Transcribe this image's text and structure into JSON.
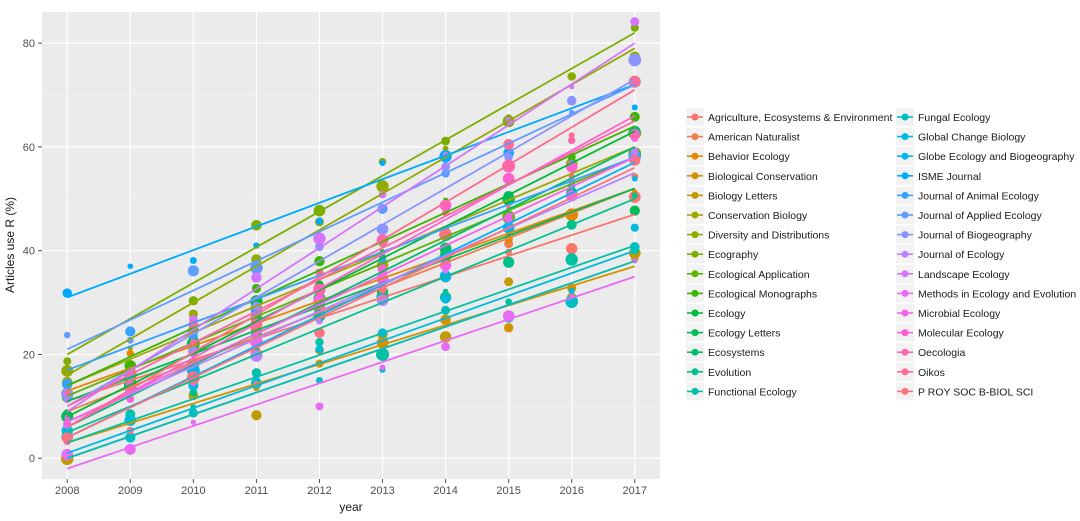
{
  "chart_data": {
    "type": "scatter",
    "title": "",
    "xlabel": "year",
    "ylabel": "Articles use R (%)",
    "x_ticks": [
      "2008",
      "2009",
      "2010",
      "2011",
      "2012",
      "2013",
      "2014",
      "2015",
      "2016",
      "2017"
    ],
    "y_ticks": [
      "0",
      "20",
      "40",
      "60",
      "80"
    ],
    "xlim": [
      2007.6,
      2017.4
    ],
    "ylim": [
      -4,
      86
    ],
    "grid": true,
    "background": "#ebebeb",
    "legend_position": "right",
    "series": [
      {
        "name": "Agriculture, Ecosystems & Environment",
        "color": "#F8766D",
        "line": [
          11,
          47
        ]
      },
      {
        "name": "American Naturalist",
        "color": "#F17D4B",
        "line": [
          9,
          52
        ]
      },
      {
        "name": "Behavior Ecology",
        "color": "#E58700",
        "line": [
          13,
          52
        ]
      },
      {
        "name": "Biological Conservation",
        "color": "#D49200",
        "line": [
          3,
          37
        ]
      },
      {
        "name": "Biology Letters",
        "color": "#C09B00",
        "line": [
          0,
          38
        ]
      },
      {
        "name": "Conservation Biology",
        "color": "#A3A500",
        "line": [
          14,
          60
        ]
      },
      {
        "name": "Diversity and Distributions",
        "color": "#93AA00",
        "line": [
          16,
          79
        ]
      },
      {
        "name": "Ecography",
        "color": "#7CAE00",
        "line": [
          20,
          82
        ]
      },
      {
        "name": "Ecological Application",
        "color": "#5EB300",
        "line": [
          12,
          58
        ]
      },
      {
        "name": "Ecological Monographs",
        "color": "#39B600",
        "line": [
          14,
          64
        ]
      },
      {
        "name": "Ecology",
        "color": "#00BA38",
        "line": [
          8,
          63
        ]
      },
      {
        "name": "Ecology Letters",
        "color": "#00BC56",
        "line": [
          11,
          52
        ]
      },
      {
        "name": "Ecosystems",
        "color": "#00BE6C",
        "line": [
          6,
          60
        ]
      },
      {
        "name": "Evolution",
        "color": "#00C08B",
        "line": [
          5,
          50
        ]
      },
      {
        "name": "Functional Ecology",
        "color": "#00C1A3",
        "line": [
          3,
          41
        ]
      },
      {
        "name": "Fungal Ecology",
        "color": "#00BFC4",
        "line": [
          0,
          38
        ]
      },
      {
        "name": "Global Change Biology",
        "color": "#00BAE0",
        "line": [
          1,
          40
        ]
      },
      {
        "name": "Globe Ecology and Biogeography",
        "color": "#00B4EF",
        "line": [
          4,
          57
        ]
      },
      {
        "name": "ISME Journal",
        "color": "#00ABFD",
        "line": [
          31,
          72
        ]
      },
      {
        "name": "Journal of Animal Ecology",
        "color": "#35A2FF",
        "line": [
          17,
          58
        ]
      },
      {
        "name": "Journal of Applied Ecology",
        "color": "#619CFF",
        "line": [
          21,
          72
        ]
      },
      {
        "name": "Journal of Biogeography",
        "color": "#8B93FF",
        "line": [
          10,
          73
        ]
      },
      {
        "name": "Journal of Ecology",
        "color": "#B983FF",
        "line": [
          7,
          55
        ]
      },
      {
        "name": "Landscape Ecology",
        "color": "#D575FE",
        "line": [
          9,
          80
        ]
      },
      {
        "name": "Methods in Ecology and Evolution",
        "color": "#E76BF3",
        "line": [
          -2,
          35
        ]
      },
      {
        "name": "Microbial Ecology",
        "color": "#F663E8",
        "line": [
          7,
          58
        ]
      },
      {
        "name": "Molecular Ecology",
        "color": "#FD61D1",
        "line": [
          6,
          66
        ]
      },
      {
        "name": "Oecologia",
        "color": "#FF65AC",
        "line": [
          10,
          65
        ]
      },
      {
        "name": "Oikos",
        "color": "#FF6C91",
        "line": [
          6,
          71
        ]
      },
      {
        "name": "P ROY SOC B-BIOL SCI",
        "color": "#FC717F",
        "line": [
          4,
          56
        ]
      }
    ]
  }
}
